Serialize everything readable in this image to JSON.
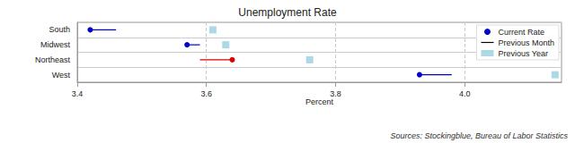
{
  "chart_data": {
    "type": "dot",
    "title": "Unemployment Rate",
    "x_label": "Percent",
    "source": "Sources: Stockingblue, Bureau of Labor Statistics",
    "categories": [
      "South",
      "Midwest",
      "Northeast",
      "West"
    ],
    "series": [
      {
        "name": "Current Rate",
        "type": "scatter",
        "marker": "circle",
        "colors": [
          "#0000cc",
          "#0000cc",
          "#dd0000",
          "#0000cc"
        ],
        "values": [
          3.42,
          3.57,
          3.64,
          3.93
        ]
      },
      {
        "name": "Previous Month",
        "type": "line",
        "color": "#000000",
        "values": [
          3.46,
          3.59,
          3.59,
          3.98
        ]
      },
      {
        "name": "Previous Year",
        "type": "scatter",
        "marker": "square",
        "color": "#add8e6",
        "values": [
          3.61,
          3.63,
          3.76,
          4.14
        ]
      }
    ],
    "xlim": [
      3.4,
      4.15
    ],
    "xticks": [
      3.4,
      3.6,
      3.8,
      {
        "value": 4,
        "label": "4.0"
      }
    ],
    "grid": true,
    "legend": "upper right"
  }
}
